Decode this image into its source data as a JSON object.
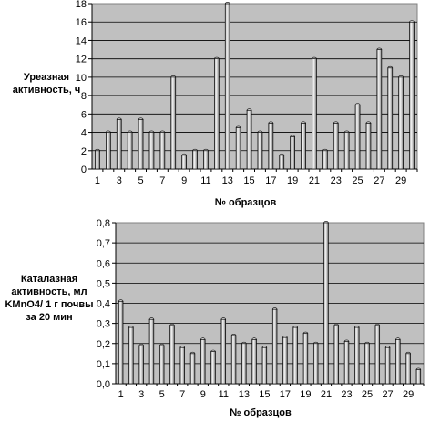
{
  "chart_data": [
    {
      "type": "bar",
      "ylabel_lines": [
        "Уреазная",
        "активность, ч"
      ],
      "xlabel": "№ образцов",
      "ylim": [
        0,
        18
      ],
      "ytick_step": 2,
      "y_decimals": 0,
      "grid": true,
      "categories": [
        "1",
        "2",
        "3",
        "4",
        "5",
        "6",
        "7",
        "8",
        "9",
        "10",
        "11",
        "12",
        "13",
        "14",
        "15",
        "16",
        "17",
        "18",
        "19",
        "20",
        "21",
        "22",
        "23",
        "24",
        "25",
        "26",
        "27",
        "28",
        "29",
        "30"
      ],
      "x_tick_labels_shown": [
        "1",
        "3",
        "5",
        "7",
        "9",
        "11",
        "13",
        "15",
        "17",
        "19",
        "21",
        "23",
        "25",
        "27",
        "29"
      ],
      "values": [
        2,
        4,
        5.4,
        4,
        5.4,
        4,
        4,
        10,
        1.5,
        2,
        2,
        12,
        18,
        4.5,
        6.4,
        4,
        5,
        1.5,
        3.5,
        5,
        12,
        2,
        5,
        4,
        7,
        5,
        13,
        11,
        10,
        16
      ]
    },
    {
      "type": "bar",
      "ylabel_lines": [
        "Каталазная",
        "активность, мл",
        "KMnO4/ 1 г почвы",
        "за 20 мин"
      ],
      "xlabel": "№ образцов",
      "ylim": [
        0,
        0.8
      ],
      "ytick_step": 0.1,
      "y_decimals": 1,
      "grid": true,
      "categories": [
        "1",
        "2",
        "3",
        "4",
        "5",
        "6",
        "7",
        "8",
        "9",
        "10",
        "11",
        "12",
        "13",
        "14",
        "15",
        "16",
        "17",
        "18",
        "19",
        "20",
        "21",
        "22",
        "23",
        "24",
        "25",
        "26",
        "27",
        "28",
        "29",
        "30"
      ],
      "x_tick_labels_shown": [
        "1",
        "3",
        "5",
        "7",
        "9",
        "11",
        "13",
        "15",
        "17",
        "19",
        "21",
        "23",
        "25",
        "27",
        "29"
      ],
      "values": [
        0.41,
        0.28,
        0.19,
        0.32,
        0.19,
        0.29,
        0.18,
        0.15,
        0.22,
        0.16,
        0.32,
        0.24,
        0.2,
        0.22,
        0.18,
        0.37,
        0.23,
        0.28,
        0.25,
        0.2,
        0.8,
        0.29,
        0.21,
        0.28,
        0.2,
        0.29,
        0.18,
        0.22,
        0.15,
        0.07
      ]
    }
  ]
}
